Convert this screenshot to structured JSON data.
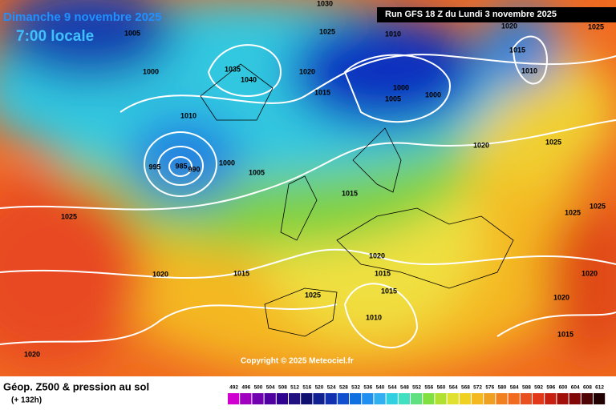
{
  "header": {
    "date": "Dimanche 9 novembre 2025",
    "time": "7:00 locale",
    "run": "Run GFS 18 Z du Lundi 3 novembre 2025"
  },
  "map": {
    "isobar_labels": [
      1005,
      1000,
      1035,
      1040,
      1010,
      1030,
      1025,
      1010,
      1020,
      1015,
      1000,
      1005,
      1000,
      1020,
      1025,
      1015,
      1010,
      1020,
      1025,
      995,
      985,
      990,
      1000,
      1005,
      1015,
      1025,
      1025,
      1025,
      1020,
      1015,
      1020,
      1015,
      1015,
      1025,
      1010,
      1020,
      1020,
      1015,
      1020
    ]
  },
  "copyright": "Copyright © 2025 Meteociel.fr",
  "footer": {
    "title": "Géop. Z500 & pression au sol",
    "lead": "(+ 132h)"
  },
  "scale": {
    "labels": [
      492,
      496,
      500,
      504,
      508,
      512,
      516,
      520,
      524,
      528,
      532,
      536,
      540,
      544,
      548,
      552,
      556,
      560,
      564,
      568,
      572,
      576,
      580,
      584,
      588,
      592,
      596,
      600,
      604,
      608,
      612
    ]
  }
}
